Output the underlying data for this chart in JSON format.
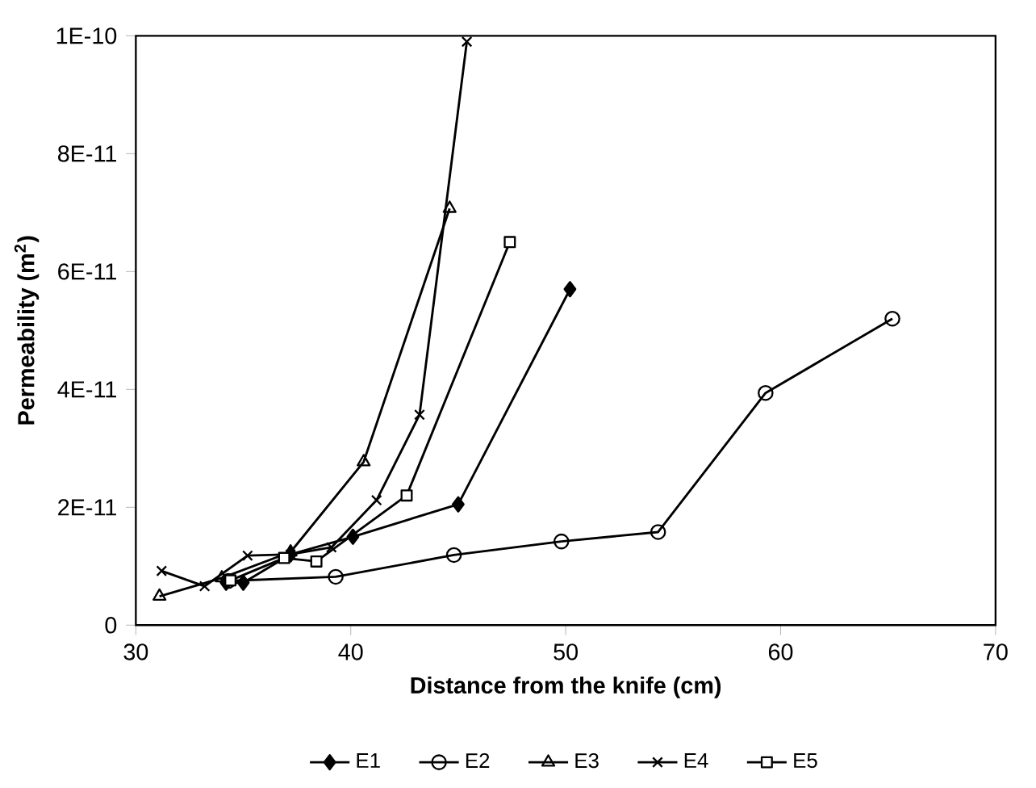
{
  "chart_data": {
    "type": "line",
    "xlabel": "Distance from the knife (cm)",
    "ylabel": "Permeability (m$^{2}$)",
    "xlim": [
      30,
      70
    ],
    "xticks": [
      30,
      40,
      50,
      60,
      70
    ],
    "ylim": [
      0,
      1e-10
    ],
    "yticks": [
      {
        "value": 0,
        "label": "0"
      },
      {
        "value": 2e-11,
        "label": "2E-11"
      },
      {
        "value": 4e-11,
        "label": "4E-11"
      },
      {
        "value": 6e-11,
        "label": "6E-11"
      },
      {
        "value": 8e-11,
        "label": "8E-11"
      },
      {
        "value": 1e-10,
        "label": "1E-10"
      }
    ],
    "grid": false,
    "legend": "bottom",
    "line_style": "solid",
    "series": [
      {
        "name": "E1",
        "color": "#000000",
        "marker": "diamond",
        "x": [
          34.2,
          35.0,
          37.2,
          40.1,
          45.0,
          50.2
        ],
        "values": [
          7.2e-12,
          7.2e-12,
          1.2e-11,
          1.5e-11,
          2.05e-11,
          5.7e-11
        ]
      },
      {
        "name": "E2",
        "color": "#000000",
        "marker": "circle",
        "x": [
          34.3,
          39.3,
          44.8,
          49.8,
          54.3,
          59.3,
          65.2
        ],
        "values": [
          7.5e-12,
          8.2e-12,
          1.19e-11,
          1.42e-11,
          1.58e-11,
          3.94e-11,
          5.2e-11
        ]
      },
      {
        "name": "E3",
        "color": "#000000",
        "marker": "triangle",
        "x": [
          31.1,
          34.0,
          37.2,
          40.6,
          44.6
        ],
        "values": [
          4.9e-12,
          8e-12,
          1.24e-11,
          2.77e-11,
          7.07e-11
        ]
      },
      {
        "name": "E4",
        "color": "#000000",
        "marker": "cross",
        "x": [
          31.2,
          33.2,
          35.2,
          37.2,
          39.1,
          41.2,
          43.2,
          45.4
        ],
        "values": [
          9.2e-12,
          6.6e-12,
          1.18e-11,
          1.2e-11,
          1.32e-11,
          2.12e-11,
          3.57e-11,
          9.9e-11
        ]
      },
      {
        "name": "E5",
        "color": "#000000",
        "marker": "square",
        "x": [
          34.4,
          36.9,
          38.4,
          42.6,
          47.4
        ],
        "values": [
          7.6e-12,
          1.14e-11,
          1.08e-11,
          2.2e-11,
          6.5e-11
        ]
      }
    ]
  }
}
